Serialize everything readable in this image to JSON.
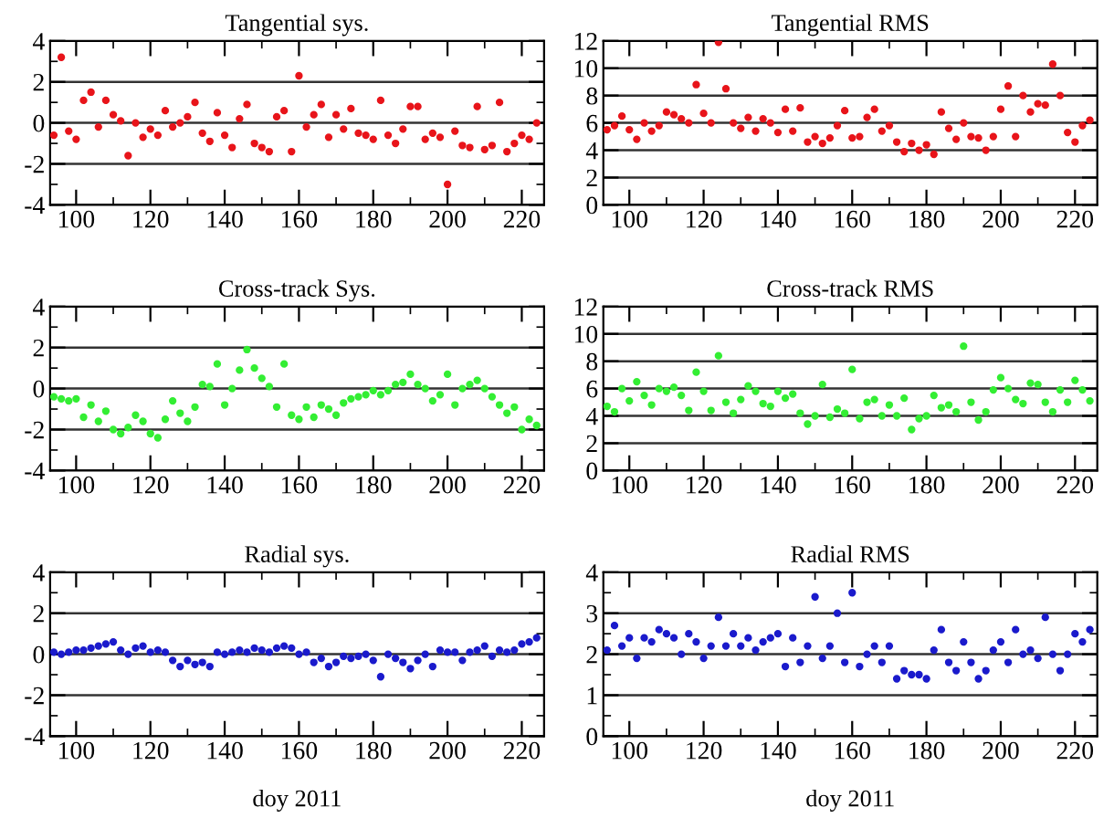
{
  "chart_data": [
    {
      "type": "scatter",
      "title": "Tangential sys.",
      "marker": "circle",
      "grid": "y",
      "xlim": [
        93,
        226
      ],
      "ylim": [
        -4,
        4
      ],
      "xticks": [
        100,
        {
          "value": 110,
          "label": null
        },
        120,
        {
          "value": 130,
          "label": null
        },
        140,
        {
          "value": 150,
          "label": null
        },
        160,
        {
          "value": 170,
          "label": null
        },
        180,
        {
          "value": 190,
          "label": null
        },
        200,
        {
          "value": 210,
          "label": null
        },
        220
      ],
      "yticks": [
        -4,
        {
          "value": -3,
          "label": null
        },
        -2,
        {
          "value": -1,
          "label": null
        },
        0,
        {
          "value": 1,
          "label": null
        },
        2,
        {
          "value": 3,
          "label": null
        },
        4
      ],
      "x": [
        94,
        96,
        98,
        100,
        102,
        104,
        106,
        108,
        110,
        112,
        114,
        116,
        118,
        120,
        122,
        124,
        126,
        128,
        130,
        132,
        134,
        136,
        138,
        140,
        142,
        144,
        146,
        148,
        150,
        152,
        154,
        156,
        158,
        160,
        162,
        164,
        166,
        168,
        170,
        172,
        174,
        176,
        178,
        180,
        182,
        184,
        186,
        188,
        190,
        192,
        194,
        196,
        198,
        200,
        202,
        204,
        206,
        208,
        210,
        212,
        214,
        216,
        218,
        220,
        222,
        224
      ],
      "series": [
        {
          "color": "#e8141a",
          "values": [
            -0.6,
            3.2,
            -0.4,
            -0.8,
            1.1,
            1.5,
            -0.2,
            1.1,
            0.4,
            0.1,
            -1.6,
            0.0,
            -0.7,
            -0.3,
            -0.6,
            0.6,
            -0.2,
            0.0,
            0.3,
            1.0,
            -0.5,
            -0.9,
            0.5,
            -0.6,
            -1.2,
            0.2,
            0.9,
            -1.0,
            -1.2,
            -1.4,
            0.3,
            0.6,
            -1.4,
            2.3,
            -0.2,
            0.4,
            0.9,
            -0.7,
            0.4,
            -0.3,
            0.7,
            -0.5,
            -0.6,
            -0.8,
            1.1,
            -0.6,
            -1.0,
            -0.3,
            0.8,
            0.8,
            -0.8,
            -0.5,
            -0.7,
            -3.0,
            -0.4,
            -1.1,
            -1.2,
            0.8,
            -1.3,
            -1.1,
            1.0,
            -1.4,
            -1.0,
            -0.6,
            -0.8,
            0.0
          ]
        }
      ]
    },
    {
      "type": "scatter",
      "title": "Tangential RMS",
      "marker": "circle",
      "grid": "y",
      "xlim": [
        93,
        226
      ],
      "ylim": [
        0,
        12
      ],
      "xticks": [
        100,
        {
          "value": 110,
          "label": null
        },
        120,
        {
          "value": 130,
          "label": null
        },
        140,
        {
          "value": 150,
          "label": null
        },
        160,
        {
          "value": 170,
          "label": null
        },
        180,
        {
          "value": 190,
          "label": null
        },
        200,
        {
          "value": 210,
          "label": null
        },
        220
      ],
      "yticks": [
        0,
        2,
        4,
        6,
        8,
        10,
        12
      ],
      "x": [
        94,
        96,
        98,
        100,
        102,
        104,
        106,
        108,
        110,
        112,
        114,
        116,
        118,
        120,
        122,
        124,
        126,
        128,
        130,
        132,
        134,
        136,
        138,
        140,
        142,
        144,
        146,
        148,
        150,
        152,
        154,
        156,
        158,
        160,
        162,
        164,
        166,
        168,
        170,
        172,
        174,
        176,
        178,
        180,
        182,
        184,
        186,
        188,
        190,
        192,
        194,
        196,
        198,
        200,
        202,
        204,
        206,
        208,
        210,
        212,
        214,
        216,
        218,
        220,
        222,
        224
      ],
      "series": [
        {
          "color": "#e8141a",
          "values": [
            5.5,
            5.8,
            6.5,
            5.5,
            4.8,
            6.0,
            5.4,
            5.8,
            6.8,
            6.6,
            6.3,
            6.0,
            8.8,
            6.7,
            6.0,
            11.9,
            8.5,
            6.0,
            5.6,
            6.4,
            5.4,
            6.3,
            6.0,
            5.3,
            7.0,
            5.4,
            7.1,
            4.6,
            5.0,
            4.5,
            4.9,
            5.8,
            6.9,
            4.9,
            5.0,
            6.4,
            7.0,
            5.4,
            5.8,
            4.6,
            3.9,
            4.5,
            4.0,
            4.4,
            3.7,
            6.8,
            5.6,
            4.8,
            6.0,
            5.0,
            4.9,
            4.0,
            5.0,
            7.0,
            8.7,
            5.0,
            8.0,
            6.8,
            7.4,
            7.3,
            10.3,
            8.0,
            5.3,
            4.6,
            5.8,
            6.2
          ]
        }
      ]
    },
    {
      "type": "scatter",
      "title": "Cross-track Sys.",
      "marker": "circle",
      "grid": "y",
      "xlim": [
        93,
        226
      ],
      "ylim": [
        -4,
        4
      ],
      "xticks": [
        100,
        {
          "value": 110,
          "label": null
        },
        120,
        {
          "value": 130,
          "label": null
        },
        140,
        {
          "value": 150,
          "label": null
        },
        160,
        {
          "value": 170,
          "label": null
        },
        180,
        {
          "value": 190,
          "label": null
        },
        200,
        {
          "value": 210,
          "label": null
        },
        220
      ],
      "yticks": [
        -4,
        {
          "value": -3,
          "label": null
        },
        -2,
        {
          "value": -1,
          "label": null
        },
        0,
        {
          "value": 1,
          "label": null
        },
        2,
        {
          "value": 3,
          "label": null
        },
        4
      ],
      "x": [
        94,
        96,
        98,
        100,
        102,
        104,
        106,
        108,
        110,
        112,
        114,
        116,
        118,
        120,
        122,
        124,
        126,
        128,
        130,
        132,
        134,
        136,
        138,
        140,
        142,
        144,
        146,
        148,
        150,
        152,
        154,
        156,
        158,
        160,
        162,
        164,
        166,
        168,
        170,
        172,
        174,
        176,
        178,
        180,
        182,
        184,
        186,
        188,
        190,
        192,
        194,
        196,
        198,
        200,
        202,
        204,
        206,
        208,
        210,
        212,
        214,
        216,
        218,
        220,
        222,
        224
      ],
      "series": [
        {
          "color": "#33ee33",
          "values": [
            -0.4,
            -0.5,
            -0.6,
            -0.5,
            -1.4,
            -0.8,
            -1.6,
            -1.1,
            -2.0,
            -2.2,
            -1.9,
            -1.3,
            -1.6,
            -2.2,
            -2.4,
            -1.5,
            -0.6,
            -1.2,
            -1.6,
            -0.9,
            0.2,
            0.1,
            1.2,
            -0.8,
            0.0,
            0.9,
            1.9,
            1.0,
            0.5,
            0.1,
            -0.9,
            1.2,
            -1.3,
            -1.5,
            -0.9,
            -1.4,
            -0.8,
            -1.0,
            -1.3,
            -0.7,
            -0.5,
            -0.4,
            -0.3,
            -0.1,
            -0.3,
            -0.1,
            0.2,
            0.3,
            0.7,
            0.2,
            0.0,
            -0.6,
            -0.3,
            0.7,
            -0.8,
            0.0,
            0.2,
            0.4,
            0.0,
            -0.4,
            -0.8,
            -1.2,
            -0.9,
            -2.0,
            -1.5,
            -1.8
          ]
        }
      ]
    },
    {
      "type": "scatter",
      "title": "Cross-track RMS",
      "marker": "circle",
      "grid": "y",
      "xlim": [
        93,
        226
      ],
      "ylim": [
        0,
        12
      ],
      "xticks": [
        100,
        {
          "value": 110,
          "label": null
        },
        120,
        {
          "value": 130,
          "label": null
        },
        140,
        {
          "value": 150,
          "label": null
        },
        160,
        {
          "value": 170,
          "label": null
        },
        180,
        {
          "value": 190,
          "label": null
        },
        200,
        {
          "value": 210,
          "label": null
        },
        220
      ],
      "yticks": [
        0,
        2,
        4,
        6,
        8,
        10,
        12
      ],
      "x": [
        94,
        96,
        98,
        100,
        102,
        104,
        106,
        108,
        110,
        112,
        114,
        116,
        118,
        120,
        122,
        124,
        126,
        128,
        130,
        132,
        134,
        136,
        138,
        140,
        142,
        144,
        146,
        148,
        150,
        152,
        154,
        156,
        158,
        160,
        162,
        164,
        166,
        168,
        170,
        172,
        174,
        176,
        178,
        180,
        182,
        184,
        186,
        188,
        190,
        192,
        194,
        196,
        198,
        200,
        202,
        204,
        206,
        208,
        210,
        212,
        214,
        216,
        218,
        220,
        222,
        224
      ],
      "series": [
        {
          "color": "#33ee33",
          "values": [
            4.7,
            4.3,
            6.0,
            5.1,
            6.5,
            5.5,
            4.8,
            6.0,
            5.8,
            6.1,
            5.5,
            4.4,
            7.2,
            5.8,
            4.4,
            8.4,
            5.0,
            4.2,
            5.2,
            6.2,
            5.8,
            4.9,
            4.7,
            5.8,
            5.3,
            5.6,
            4.2,
            3.4,
            4.0,
            6.3,
            3.9,
            4.5,
            4.2,
            7.4,
            3.8,
            5.0,
            5.2,
            4.0,
            4.8,
            4.0,
            5.3,
            3.0,
            3.8,
            4.0,
            5.5,
            4.6,
            4.8,
            4.3,
            9.1,
            5.0,
            3.7,
            4.3,
            5.9,
            6.8,
            6.0,
            5.2,
            4.9,
            6.4,
            6.3,
            5.0,
            4.3,
            5.9,
            5.0,
            6.6,
            5.9,
            5.1
          ]
        }
      ]
    },
    {
      "type": "scatter",
      "title": "Radial sys.",
      "xlabel": "doy 2011",
      "marker": "circle",
      "grid": "y",
      "xlim": [
        93,
        226
      ],
      "ylim": [
        -4,
        4
      ],
      "xticks": [
        100,
        {
          "value": 110,
          "label": null
        },
        120,
        {
          "value": 130,
          "label": null
        },
        140,
        {
          "value": 150,
          "label": null
        },
        160,
        {
          "value": 170,
          "label": null
        },
        180,
        {
          "value": 190,
          "label": null
        },
        200,
        {
          "value": 210,
          "label": null
        },
        220
      ],
      "yticks": [
        -4,
        {
          "value": -3,
          "label": null
        },
        -2,
        {
          "value": -1,
          "label": null
        },
        0,
        {
          "value": 1,
          "label": null
        },
        2,
        {
          "value": 3,
          "label": null
        },
        4
      ],
      "x": [
        94,
        96,
        98,
        100,
        102,
        104,
        106,
        108,
        110,
        112,
        114,
        116,
        118,
        120,
        122,
        124,
        126,
        128,
        130,
        132,
        134,
        136,
        138,
        140,
        142,
        144,
        146,
        148,
        150,
        152,
        154,
        156,
        158,
        160,
        162,
        164,
        166,
        168,
        170,
        172,
        174,
        176,
        178,
        180,
        182,
        184,
        186,
        188,
        190,
        192,
        194,
        196,
        198,
        200,
        202,
        204,
        206,
        208,
        210,
        212,
        214,
        216,
        218,
        220,
        222,
        224
      ],
      "series": [
        {
          "color": "#1a1acc",
          "values": [
            0.1,
            0.0,
            0.1,
            0.2,
            0.2,
            0.3,
            0.4,
            0.5,
            0.6,
            0.2,
            0.0,
            0.3,
            0.4,
            0.1,
            0.2,
            0.1,
            -0.3,
            -0.6,
            -0.3,
            -0.5,
            -0.4,
            -0.6,
            0.1,
            0.0,
            0.1,
            0.2,
            0.1,
            0.3,
            0.2,
            0.1,
            0.3,
            0.4,
            0.3,
            0.0,
            0.1,
            -0.4,
            -0.2,
            -0.6,
            -0.4,
            -0.1,
            -0.2,
            -0.1,
            0.0,
            -0.3,
            -1.1,
            0.0,
            -0.2,
            -0.4,
            -0.7,
            -0.3,
            0.0,
            -0.6,
            0.2,
            0.1,
            0.1,
            -0.3,
            0.1,
            0.2,
            0.4,
            -0.1,
            0.2,
            0.1,
            0.2,
            0.5,
            0.6,
            0.8
          ]
        }
      ]
    },
    {
      "type": "scatter",
      "title": "Radial RMS",
      "xlabel": "doy 2011",
      "marker": "circle",
      "grid": "y",
      "xlim": [
        93,
        226
      ],
      "ylim": [
        0,
        4
      ],
      "xticks": [
        100,
        {
          "value": 110,
          "label": null
        },
        120,
        {
          "value": 130,
          "label": null
        },
        140,
        {
          "value": 150,
          "label": null
        },
        160,
        {
          "value": 170,
          "label": null
        },
        180,
        {
          "value": 190,
          "label": null
        },
        200,
        {
          "value": 210,
          "label": null
        },
        220
      ],
      "yticks": [
        0,
        {
          "value": 0.5,
          "label": null
        },
        1,
        {
          "value": 1.5,
          "label": null
        },
        2,
        {
          "value": 2.5,
          "label": null
        },
        3,
        {
          "value": 3.5,
          "label": null
        },
        4
      ],
      "x": [
        94,
        96,
        98,
        100,
        102,
        104,
        106,
        108,
        110,
        112,
        114,
        116,
        118,
        120,
        122,
        124,
        126,
        128,
        130,
        132,
        134,
        136,
        138,
        140,
        142,
        144,
        146,
        148,
        150,
        152,
        154,
        156,
        158,
        160,
        162,
        164,
        166,
        168,
        170,
        172,
        174,
        176,
        178,
        180,
        182,
        184,
        186,
        188,
        190,
        192,
        194,
        196,
        198,
        200,
        202,
        204,
        206,
        208,
        210,
        212,
        214,
        216,
        218,
        220,
        222,
        224
      ],
      "series": [
        {
          "color": "#1a1acc",
          "values": [
            2.1,
            2.7,
            2.2,
            2.4,
            1.9,
            2.4,
            2.3,
            2.6,
            2.5,
            2.4,
            2.0,
            2.5,
            2.3,
            1.9,
            2.2,
            2.9,
            2.2,
            2.5,
            2.2,
            2.4,
            2.1,
            2.3,
            2.4,
            2.5,
            1.7,
            2.4,
            1.8,
            2.2,
            3.4,
            1.9,
            2.2,
            3.0,
            1.8,
            3.5,
            1.7,
            2.0,
            2.2,
            1.8,
            2.2,
            1.4,
            1.6,
            1.5,
            1.5,
            1.4,
            2.1,
            2.6,
            1.8,
            1.6,
            2.3,
            1.8,
            1.4,
            1.6,
            2.1,
            2.3,
            1.8,
            2.6,
            2.0,
            2.1,
            1.9,
            2.9,
            2.0,
            1.6,
            2.0,
            2.5,
            2.3,
            2.6
          ]
        }
      ]
    }
  ]
}
